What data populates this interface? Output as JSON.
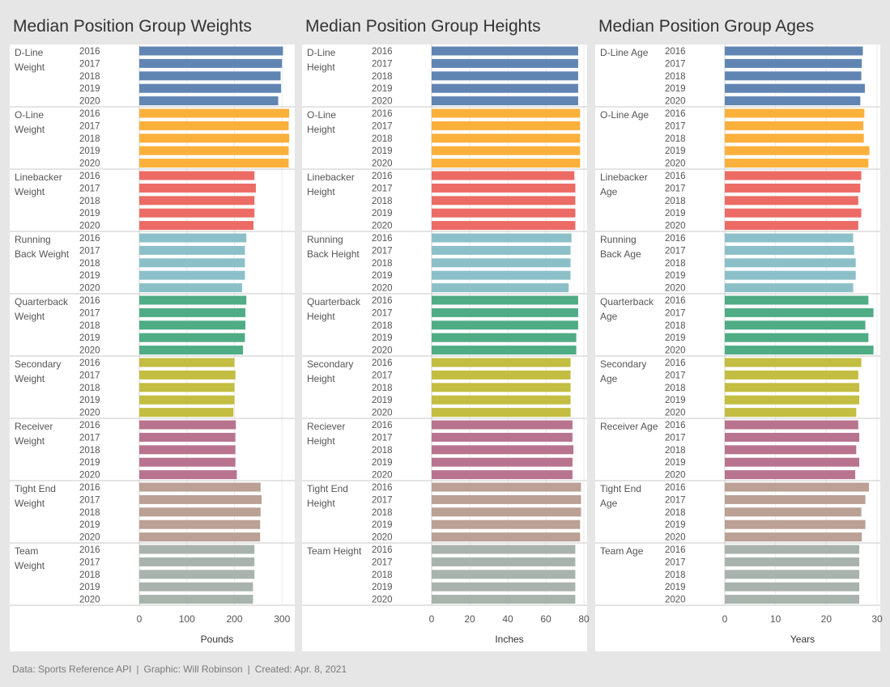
{
  "footer": {
    "source": "Data: Sports Reference API",
    "graphic": "Graphic: Will Robinson",
    "created": "Created: Apr. 8, 2021",
    "separator": "|"
  },
  "colors": {
    "groups": [
      "#6185b3",
      "#fbb03b",
      "#ec6b65",
      "#8cc0c9",
      "#4fac85",
      "#c3bd41",
      "#b8748f",
      "#baa095",
      "#a9b3ad"
    ],
    "background": "#e6e6e6",
    "panel": "#ffffff",
    "text": "#555555"
  },
  "chart_data": [
    {
      "type": "bar",
      "orientation": "horizontal",
      "title": "Median Position Group Weights",
      "xlabel": "Pounds",
      "xlim": [
        0,
        320
      ],
      "ticks": [
        0,
        100,
        200,
        300
      ],
      "years": [
        "2016",
        "2017",
        "2018",
        "2019",
        "2020"
      ],
      "groups": [
        {
          "label": [
            "D-Line",
            "Weight"
          ],
          "values": [
            302,
            300,
            297,
            298,
            292
          ]
        },
        {
          "label": [
            "O-Line",
            "Weight"
          ],
          "values": [
            315,
            314,
            315,
            314,
            314
          ]
        },
        {
          "label": [
            "Linebacker",
            "Weight"
          ],
          "values": [
            242,
            245,
            242,
            242,
            240
          ]
        },
        {
          "label": [
            "Running",
            "Back Weight"
          ],
          "values": [
            225,
            222,
            222,
            222,
            216
          ]
        },
        {
          "label": [
            "Quarterback",
            "Weight"
          ],
          "values": [
            225,
            223,
            223,
            222,
            218
          ]
        },
        {
          "label": [
            "Secondary",
            "Weight"
          ],
          "values": [
            200,
            202,
            200,
            200,
            198
          ]
        },
        {
          "label": [
            "Receiver",
            "Weight"
          ],
          "values": [
            203,
            202,
            202,
            202,
            205
          ]
        },
        {
          "label": [
            "Tight End",
            "Weight"
          ],
          "values": [
            255,
            257,
            255,
            254,
            254
          ]
        },
        {
          "label": [
            "Team",
            "Weight"
          ],
          "values": [
            242,
            242,
            242,
            239,
            239
          ]
        }
      ]
    },
    {
      "type": "bar",
      "orientation": "horizontal",
      "title": "Median Position Group Heights",
      "xlabel": "Inches",
      "xlim": [
        0,
        80
      ],
      "ticks": [
        0,
        20,
        40,
        60,
        80
      ],
      "years": [
        "2016",
        "2017",
        "2018",
        "2019",
        "2020"
      ],
      "groups": [
        {
          "label": [
            "D-Line",
            "Height"
          ],
          "values": [
            77,
            77,
            77,
            77,
            77
          ]
        },
        {
          "label": [
            "O-Line",
            "Height"
          ],
          "values": [
            78,
            78,
            78,
            78,
            78
          ]
        },
        {
          "label": [
            "Linebacker",
            "Height"
          ],
          "values": [
            75,
            75.5,
            75.5,
            75.5,
            75.5
          ]
        },
        {
          "label": [
            "Running",
            "Back Height"
          ],
          "values": [
            73.5,
            73,
            73,
            73,
            72
          ]
        },
        {
          "label": [
            "Quarterback",
            "Height"
          ],
          "values": [
            77,
            77,
            77,
            76,
            76
          ]
        },
        {
          "label": [
            "Secondary",
            "Height"
          ],
          "values": [
            73,
            73,
            73,
            73,
            73
          ]
        },
        {
          "label": [
            "Reciever",
            "Height"
          ],
          "values": [
            74,
            74,
            74.5,
            74,
            74
          ]
        },
        {
          "label": [
            "Tight End",
            "Height"
          ],
          "values": [
            78.5,
            78.5,
            78.5,
            78,
            78
          ]
        },
        {
          "label": [
            "Team Height"
          ],
          "values": [
            75.5,
            75.5,
            75.5,
            75.5,
            75.5
          ]
        }
      ]
    },
    {
      "type": "bar",
      "orientation": "horizontal",
      "title": "Median Position Group Ages",
      "xlabel": "Years",
      "xlim": [
        0,
        30
      ],
      "ticks": [
        0,
        10,
        20,
        30
      ],
      "years": [
        "2016",
        "2017",
        "2018",
        "2019",
        "2020"
      ],
      "groups": [
        {
          "label": [
            "D-Line Age"
          ],
          "values": [
            27.2,
            27,
            26.9,
            27.6,
            26.7
          ]
        },
        {
          "label": [
            "O-Line Age"
          ],
          "values": [
            27.5,
            27.3,
            27.4,
            28.5,
            28.3
          ]
        },
        {
          "label": [
            "Linebacker",
            "Age"
          ],
          "values": [
            26.9,
            26.7,
            26.3,
            26.9,
            26.3
          ]
        },
        {
          "label": [
            "Running",
            "Back Age"
          ],
          "values": [
            25.3,
            25.5,
            25.8,
            25.8,
            25.3
          ]
        },
        {
          "label": [
            "Quarterback",
            "Age"
          ],
          "values": [
            28.3,
            29.3,
            27.7,
            28.3,
            29.3
          ]
        },
        {
          "label": [
            "Secondary",
            "Age"
          ],
          "values": [
            26.9,
            26.3,
            26.5,
            26.5,
            25.9
          ]
        },
        {
          "label": [
            "Receiver Age"
          ],
          "values": [
            26.3,
            26.5,
            25.9,
            26.5,
            25.7
          ]
        },
        {
          "label": [
            "Tight End",
            "Age"
          ],
          "values": [
            28.4,
            27.7,
            26.9,
            27.7,
            27
          ]
        },
        {
          "label": [
            "Team Age"
          ],
          "values": [
            26.5,
            26.5,
            26.5,
            26.5,
            26.5
          ]
        }
      ]
    }
  ]
}
